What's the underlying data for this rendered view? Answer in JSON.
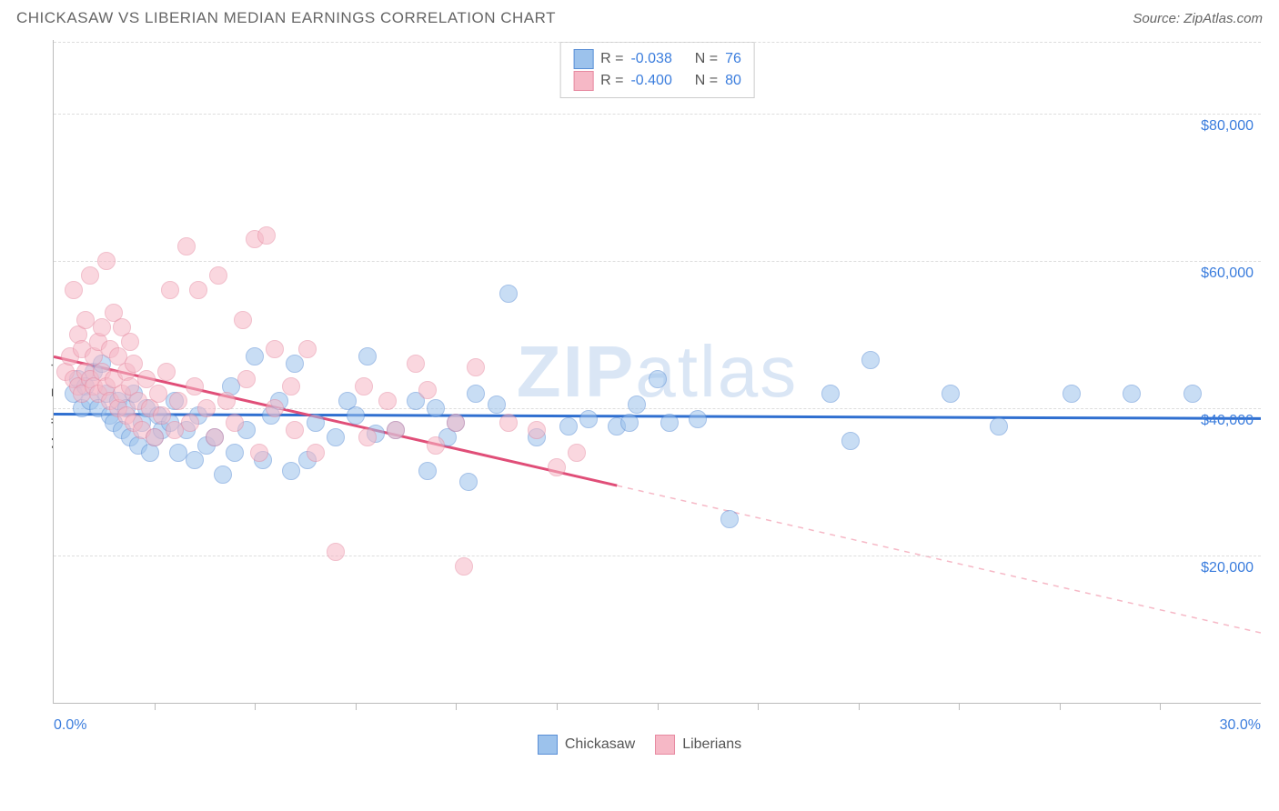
{
  "header": {
    "title": "CHICKASAW VS LIBERIAN MEDIAN EARNINGS CORRELATION CHART",
    "source_label": "Source: ",
    "source_name": "ZipAtlas.com"
  },
  "chart": {
    "type": "scatter",
    "watermark": "ZIPatlas",
    "y_axis_label": "Median Earnings",
    "background_color": "#ffffff",
    "grid_color": "#dddddd",
    "axis_color": "#bbbbbb",
    "x": {
      "min": 0.0,
      "max": 30.0,
      "tick_step": 2.5,
      "start_label": "0.0%",
      "end_label": "30.0%",
      "label_color": "#3b7ddd"
    },
    "y": {
      "min": 0,
      "max": 90000,
      "tick_step": 20000,
      "tick_labels": [
        "$20,000",
        "$40,000",
        "$60,000",
        "$80,000"
      ],
      "tick_values": [
        20000,
        40000,
        60000,
        80000
      ],
      "label_color": "#3b7ddd"
    },
    "marker_radius": 10,
    "marker_border_width": 1,
    "marker_opacity": 0.55,
    "series": [
      {
        "name": "Chickasaw",
        "fill": "#9cc2ec",
        "stroke": "#5a8fd6",
        "trend": {
          "color": "#2f6fd0",
          "width": 3,
          "y_at_xmin": 39200,
          "y_at_xmax": 38600,
          "data_x_max": 30,
          "dash_after_data": false
        },
        "stats": {
          "R": "-0.038",
          "N": "76"
        },
        "points": [
          [
            0.5,
            42000
          ],
          [
            0.6,
            44000
          ],
          [
            0.7,
            40000
          ],
          [
            0.8,
            43000
          ],
          [
            0.9,
            41000
          ],
          [
            1.0,
            45000
          ],
          [
            1.1,
            40000
          ],
          [
            1.2,
            46000
          ],
          [
            1.3,
            42000
          ],
          [
            1.4,
            39000
          ],
          [
            1.5,
            38000
          ],
          [
            1.6,
            41000
          ],
          [
            1.7,
            37000
          ],
          [
            1.8,
            40000
          ],
          [
            1.9,
            36000
          ],
          [
            2.0,
            42000
          ],
          [
            2.1,
            35000
          ],
          [
            2.2,
            38000
          ],
          [
            2.3,
            40000
          ],
          [
            2.4,
            34000
          ],
          [
            2.5,
            36000
          ],
          [
            2.6,
            39000
          ],
          [
            2.7,
            37000
          ],
          [
            2.9,
            38000
          ],
          [
            3.0,
            41000
          ],
          [
            3.1,
            34000
          ],
          [
            3.3,
            37000
          ],
          [
            3.5,
            33000
          ],
          [
            3.6,
            39000
          ],
          [
            3.8,
            35000
          ],
          [
            4.0,
            36000
          ],
          [
            4.2,
            31000
          ],
          [
            4.4,
            43000
          ],
          [
            4.5,
            34000
          ],
          [
            4.8,
            37000
          ],
          [
            5.0,
            47000
          ],
          [
            5.2,
            33000
          ],
          [
            5.4,
            39000
          ],
          [
            5.6,
            41000
          ],
          [
            5.9,
            31500
          ],
          [
            6.0,
            46000
          ],
          [
            6.3,
            33000
          ],
          [
            6.5,
            38000
          ],
          [
            7.0,
            36000
          ],
          [
            7.3,
            41000
          ],
          [
            7.5,
            39000
          ],
          [
            7.8,
            47000
          ],
          [
            8.0,
            36500
          ],
          [
            8.5,
            37000
          ],
          [
            9.0,
            41000
          ],
          [
            9.3,
            31500
          ],
          [
            9.5,
            40000
          ],
          [
            9.8,
            36000
          ],
          [
            10.0,
            38000
          ],
          [
            10.3,
            30000
          ],
          [
            10.5,
            42000
          ],
          [
            11.0,
            40500
          ],
          [
            11.3,
            55500
          ],
          [
            12.0,
            36000
          ],
          [
            12.8,
            37500
          ],
          [
            13.3,
            38500
          ],
          [
            14.0,
            37500
          ],
          [
            14.3,
            38000
          ],
          [
            14.5,
            40500
          ],
          [
            15.0,
            44000
          ],
          [
            15.3,
            38000
          ],
          [
            16.0,
            38500
          ],
          [
            16.8,
            25000
          ],
          [
            19.3,
            42000
          ],
          [
            20.3,
            46500
          ],
          [
            19.8,
            35500
          ],
          [
            22.3,
            42000
          ],
          [
            23.5,
            37500
          ],
          [
            25.3,
            42000
          ],
          [
            26.8,
            42000
          ],
          [
            28.3,
            42000
          ]
        ]
      },
      {
        "name": "Liberians",
        "fill": "#f6b8c6",
        "stroke": "#e78aa1",
        "trend": {
          "color": "#e04e78",
          "width": 3,
          "y_at_xmin": 47000,
          "y_at_xmax": 9500,
          "data_x_max": 14,
          "dash_after_data": true
        },
        "stats": {
          "R": "-0.400",
          "N": "80"
        },
        "points": [
          [
            0.3,
            45000
          ],
          [
            0.4,
            47000
          ],
          [
            0.5,
            44000
          ],
          [
            0.5,
            56000
          ],
          [
            0.6,
            43000
          ],
          [
            0.6,
            50000
          ],
          [
            0.7,
            42000
          ],
          [
            0.7,
            48000
          ],
          [
            0.8,
            45000
          ],
          [
            0.8,
            52000
          ],
          [
            0.9,
            44000
          ],
          [
            0.9,
            58000
          ],
          [
            1.0,
            43000
          ],
          [
            1.0,
            47000
          ],
          [
            1.1,
            49000
          ],
          [
            1.1,
            42000
          ],
          [
            1.2,
            51000
          ],
          [
            1.2,
            45000
          ],
          [
            1.3,
            43000
          ],
          [
            1.3,
            60000
          ],
          [
            1.4,
            41000
          ],
          [
            1.4,
            48000
          ],
          [
            1.5,
            44000
          ],
          [
            1.5,
            53000
          ],
          [
            1.6,
            40000
          ],
          [
            1.6,
            47000
          ],
          [
            1.7,
            42000
          ],
          [
            1.7,
            51000
          ],
          [
            1.8,
            39000
          ],
          [
            1.8,
            45000
          ],
          [
            1.9,
            43000
          ],
          [
            1.9,
            49000
          ],
          [
            2.0,
            38000
          ],
          [
            2.0,
            46000
          ],
          [
            2.1,
            41000
          ],
          [
            2.2,
            37000
          ],
          [
            2.3,
            44000
          ],
          [
            2.4,
            40000
          ],
          [
            2.5,
            36000
          ],
          [
            2.6,
            42000
          ],
          [
            2.7,
            39000
          ],
          [
            2.8,
            45000
          ],
          [
            2.9,
            56000
          ],
          [
            3.0,
            37000
          ],
          [
            3.1,
            41000
          ],
          [
            3.3,
            62000
          ],
          [
            3.4,
            38000
          ],
          [
            3.5,
            43000
          ],
          [
            3.6,
            56000
          ],
          [
            3.8,
            40000
          ],
          [
            4.0,
            36000
          ],
          [
            4.1,
            58000
          ],
          [
            4.3,
            41000
          ],
          [
            4.5,
            38000
          ],
          [
            4.7,
            52000
          ],
          [
            4.8,
            44000
          ],
          [
            5.0,
            63000
          ],
          [
            5.1,
            34000
          ],
          [
            5.3,
            63500
          ],
          [
            5.5,
            40000
          ],
          [
            5.5,
            48000
          ],
          [
            5.9,
            43000
          ],
          [
            6.0,
            37000
          ],
          [
            6.3,
            48000
          ],
          [
            6.5,
            34000
          ],
          [
            7.0,
            20500
          ],
          [
            7.7,
            43000
          ],
          [
            7.8,
            36000
          ],
          [
            8.3,
            41000
          ],
          [
            8.5,
            37000
          ],
          [
            9.0,
            46000
          ],
          [
            9.3,
            42500
          ],
          [
            9.5,
            35000
          ],
          [
            10.0,
            38000
          ],
          [
            10.2,
            18500
          ],
          [
            10.5,
            45500
          ],
          [
            11.3,
            38000
          ],
          [
            12.0,
            37000
          ],
          [
            12.5,
            32000
          ],
          [
            13.0,
            34000
          ]
        ]
      }
    ],
    "legend": {
      "series1_label": "Chickasaw",
      "series2_label": "Liberians"
    }
  }
}
